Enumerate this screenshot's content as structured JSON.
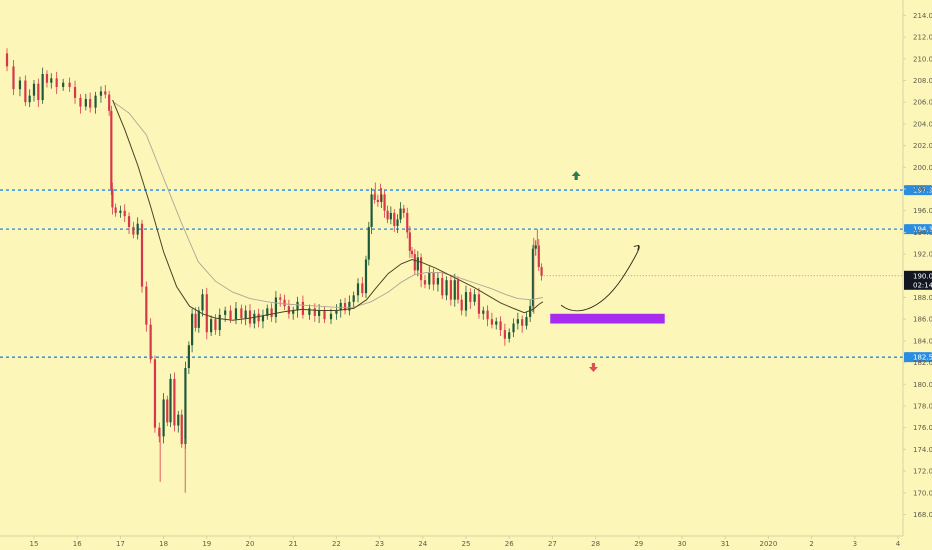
{
  "colors": {
    "background": "#fdf6b9",
    "axis_line": "#d8d3a5",
    "up_candle": "#1d5a3a",
    "down_candle": "#d6384a",
    "level_line": "#1e88e5",
    "level_label_bg": "#2a8de0",
    "current_price_bg": "#131722",
    "box_fill": "#a72cf0",
    "green_arrow": "#2e7d4f",
    "red_arrow": "#d95353",
    "ma_fast": "#4a4426",
    "ma_slow": "#b0a596",
    "projection": "#2a2a1a"
  },
  "chart_data": {
    "type": "candlestick",
    "ylim": [
      166.7,
      215.5
    ],
    "y_ticks": [
      "168.0",
      "170.0",
      "172.0",
      "174.0",
      "176.0",
      "178.0",
      "180.0",
      "182.0",
      "184.0",
      "186.0",
      "188.0",
      "190.0",
      "192.0",
      "194.0",
      "196.0",
      "198.0",
      "200.0",
      "202.0",
      "204.0",
      "206.0",
      "208.0",
      "210.0",
      "212.0",
      "214.0"
    ],
    "x_ticks": [
      "15",
      "16",
      "17",
      "18",
      "19",
      "20",
      "21",
      "22",
      "23",
      "24",
      "25",
      "26",
      "27",
      "28",
      "29",
      "30",
      "31",
      "2020",
      "2",
      "3",
      "4"
    ],
    "levels": [
      {
        "value": 197.9,
        "label": "197.9"
      },
      {
        "value": 194.3,
        "label": "194.3"
      },
      {
        "value": 182.5,
        "label": "182.5"
      }
    ],
    "current_price": {
      "value": 190.0,
      "label": "190.0",
      "countdown": "02:14"
    },
    "target_zone": {
      "x_start": 26.95,
      "x_end": 29.6,
      "y_low": 185.6,
      "y_high": 186.5
    },
    "projection_path": [
      {
        "x": 27.2,
        "y": 187.3
      },
      {
        "x": 27.6,
        "y": 186.6
      },
      {
        "x": 28.2,
        "y": 187.4
      },
      {
        "x": 28.7,
        "y": 190.3
      },
      {
        "x": 29.0,
        "y": 192.8
      }
    ],
    "arrows": [
      {
        "direction": "up",
        "x": 27.55,
        "y": 199.2
      },
      {
        "direction": "down",
        "x": 27.95,
        "y": 181.6
      }
    ],
    "series": [
      {
        "kind": "close_path",
        "points": [
          [
            14.3,
            210.5
          ],
          [
            14.45,
            209.3
          ],
          [
            14.6,
            207.2
          ],
          [
            14.75,
            208.0
          ],
          [
            14.85,
            206.0
          ],
          [
            14.95,
            206.6
          ],
          [
            15.05,
            207.7
          ],
          [
            15.15,
            206.2
          ],
          [
            15.25,
            208.6
          ],
          [
            15.35,
            207.8
          ],
          [
            15.45,
            208.2
          ],
          [
            15.6,
            207.4
          ],
          [
            15.75,
            207.8
          ],
          [
            15.9,
            207.4
          ],
          [
            16.0,
            206.4
          ],
          [
            16.15,
            205.6
          ],
          [
            16.25,
            206.3
          ],
          [
            16.35,
            205.5
          ],
          [
            16.5,
            206.6
          ],
          [
            16.6,
            207.0
          ],
          [
            16.7,
            206.7
          ],
          [
            16.78,
            205.2
          ],
          [
            16.8,
            198.0
          ],
          [
            16.83,
            196.3
          ],
          [
            16.95,
            195.8
          ],
          [
            17.05,
            196.0
          ],
          [
            17.15,
            195.5
          ],
          [
            17.25,
            194.5
          ],
          [
            17.35,
            193.8
          ],
          [
            17.45,
            194.8
          ],
          [
            17.55,
            189.0
          ],
          [
            17.65,
            185.5
          ],
          [
            17.75,
            182.3
          ],
          [
            17.85,
            176.0
          ],
          [
            17.95,
            175.2
          ],
          [
            18.05,
            178.6
          ],
          [
            18.12,
            176.5
          ],
          [
            18.2,
            180.5
          ],
          [
            18.3,
            176.2
          ],
          [
            18.38,
            177.2
          ],
          [
            18.46,
            174.5
          ],
          [
            18.55,
            181.5
          ],
          [
            18.62,
            183.6
          ],
          [
            18.7,
            186.5
          ],
          [
            18.78,
            185.2
          ],
          [
            18.85,
            186.8
          ],
          [
            18.95,
            188.3
          ],
          [
            19.05,
            184.8
          ],
          [
            19.15,
            186.0
          ],
          [
            19.25,
            185.0
          ],
          [
            19.35,
            186.4
          ],
          [
            19.5,
            186.8
          ],
          [
            19.6,
            186.0
          ],
          [
            19.75,
            187.0
          ],
          [
            19.85,
            186.1
          ],
          [
            19.95,
            186.8
          ],
          [
            20.05,
            185.6
          ],
          [
            20.15,
            186.5
          ],
          [
            20.25,
            185.8
          ],
          [
            20.35,
            186.3
          ],
          [
            20.45,
            187.0
          ],
          [
            20.55,
            186.2
          ],
          [
            20.65,
            188.0
          ],
          [
            20.75,
            187.8
          ],
          [
            20.85,
            187.2
          ],
          [
            20.95,
            186.5
          ],
          [
            21.05,
            186.8
          ],
          [
            21.15,
            187.6
          ],
          [
            21.3,
            186.4
          ],
          [
            21.45,
            187.0
          ],
          [
            21.55,
            186.3
          ],
          [
            21.65,
            186.8
          ],
          [
            21.8,
            186.0
          ],
          [
            21.95,
            186.5
          ],
          [
            22.05,
            186.8
          ],
          [
            22.15,
            187.5
          ],
          [
            22.25,
            186.8
          ],
          [
            22.35,
            187.6
          ],
          [
            22.45,
            188.2
          ],
          [
            22.55,
            189.3
          ],
          [
            22.65,
            188.4
          ],
          [
            22.72,
            191.5
          ],
          [
            22.78,
            194.5
          ],
          [
            22.85,
            197.5
          ],
          [
            22.92,
            197.0
          ],
          [
            23.0,
            196.8
          ],
          [
            23.08,
            197.5
          ],
          [
            23.15,
            196.0
          ],
          [
            23.22,
            195.2
          ],
          [
            23.3,
            195.8
          ],
          [
            23.38,
            194.6
          ],
          [
            23.45,
            195.2
          ],
          [
            23.52,
            196.2
          ],
          [
            23.6,
            195.8
          ],
          [
            23.68,
            194.0
          ],
          [
            23.72,
            192.3
          ],
          [
            23.78,
            192.0
          ],
          [
            23.85,
            190.5
          ],
          [
            23.92,
            191.7
          ],
          [
            24.0,
            189.6
          ],
          [
            24.1,
            189.2
          ],
          [
            24.2,
            190.3
          ],
          [
            24.3,
            189.2
          ],
          [
            24.4,
            189.8
          ],
          [
            24.5,
            188.2
          ],
          [
            24.6,
            189.6
          ],
          [
            24.7,
            187.8
          ],
          [
            24.78,
            189.6
          ],
          [
            24.85,
            187.8
          ],
          [
            24.95,
            186.8
          ],
          [
            25.05,
            188.5
          ],
          [
            25.15,
            187.6
          ],
          [
            25.25,
            188.3
          ],
          [
            25.35,
            186.5
          ],
          [
            25.45,
            186.8
          ],
          [
            25.55,
            186.0
          ],
          [
            25.65,
            185.5
          ],
          [
            25.75,
            185.8
          ],
          [
            25.85,
            185.0
          ],
          [
            25.95,
            184.2
          ],
          [
            26.05,
            184.8
          ],
          [
            26.15,
            185.6
          ],
          [
            26.25,
            186.0
          ],
          [
            26.35,
            185.4
          ],
          [
            26.45,
            186.2
          ],
          [
            26.52,
            187.2
          ],
          [
            26.58,
            192.5
          ],
          [
            26.65,
            192.8
          ],
          [
            26.72,
            190.8
          ],
          [
            26.78,
            190.0
          ]
        ]
      },
      {
        "kind": "moving_average_fast",
        "points": [
          [
            16.82,
            206.2
          ],
          [
            17.1,
            203.5
          ],
          [
            17.4,
            200.2
          ],
          [
            17.7,
            196.4
          ],
          [
            18.0,
            192.2
          ],
          [
            18.3,
            189.0
          ],
          [
            18.6,
            187.2
          ],
          [
            18.9,
            186.5
          ],
          [
            19.2,
            186.1
          ],
          [
            19.6,
            185.9
          ],
          [
            20.0,
            186.1
          ],
          [
            20.4,
            186.4
          ],
          [
            20.8,
            186.7
          ],
          [
            21.2,
            186.9
          ],
          [
            21.6,
            186.8
          ],
          [
            22.0,
            186.8
          ],
          [
            22.4,
            187.0
          ],
          [
            22.7,
            187.8
          ],
          [
            22.9,
            188.8
          ],
          [
            23.2,
            190.2
          ],
          [
            23.5,
            191.1
          ],
          [
            23.75,
            191.5
          ],
          [
            24.0,
            191.2
          ],
          [
            24.3,
            190.7
          ],
          [
            24.6,
            190.1
          ],
          [
            24.9,
            189.5
          ],
          [
            25.2,
            188.9
          ],
          [
            25.5,
            188.2
          ],
          [
            25.8,
            187.5
          ],
          [
            26.1,
            187.0
          ],
          [
            26.35,
            186.6
          ],
          [
            26.55,
            186.9
          ],
          [
            26.7,
            187.4
          ],
          [
            26.78,
            187.6
          ]
        ]
      },
      {
        "kind": "moving_average_slow",
        "points": [
          [
            16.85,
            206.0
          ],
          [
            17.2,
            205.0
          ],
          [
            17.6,
            203.0
          ],
          [
            18.0,
            199.0
          ],
          [
            18.4,
            195.0
          ],
          [
            18.8,
            191.3
          ],
          [
            19.2,
            189.5
          ],
          [
            19.6,
            188.5
          ],
          [
            20.0,
            187.9
          ],
          [
            20.4,
            187.6
          ],
          [
            20.8,
            187.4
          ],
          [
            21.2,
            187.3
          ],
          [
            21.6,
            187.2
          ],
          [
            22.0,
            187.1
          ],
          [
            22.4,
            187.1
          ],
          [
            22.8,
            187.6
          ],
          [
            23.2,
            188.5
          ],
          [
            23.5,
            189.4
          ],
          [
            23.8,
            190.1
          ],
          [
            24.1,
            190.3
          ],
          [
            24.4,
            190.3
          ],
          [
            24.7,
            190.0
          ],
          [
            25.0,
            189.6
          ],
          [
            25.3,
            189.2
          ],
          [
            25.6,
            188.8
          ],
          [
            25.9,
            188.3
          ],
          [
            26.2,
            187.9
          ],
          [
            26.5,
            187.8
          ],
          [
            26.78,
            188.0
          ]
        ]
      }
    ]
  }
}
